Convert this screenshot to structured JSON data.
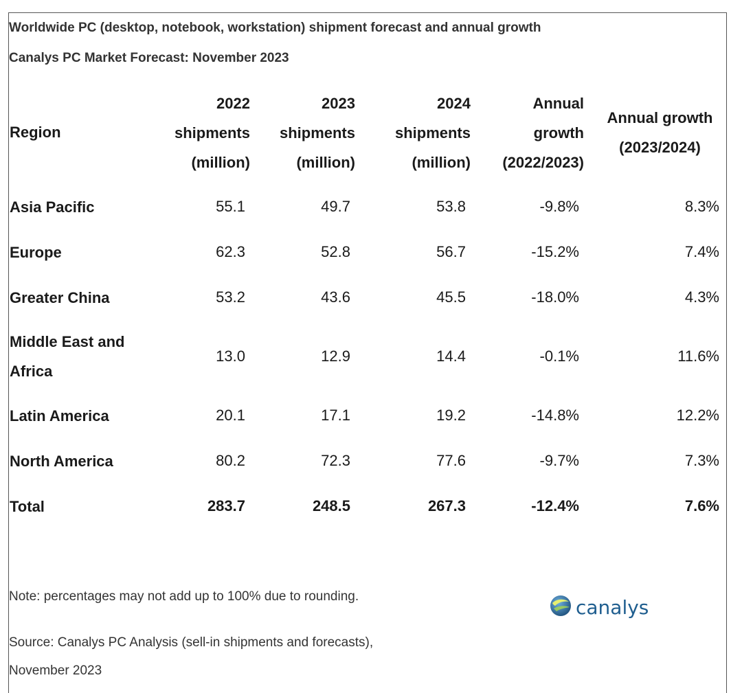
{
  "title": "Worldwide PC (desktop, notebook, workstation) shipment forecast and annual growth",
  "subtitle": "Canalys PC Market Forecast: November 2023",
  "chart_data": {
    "type": "table",
    "columns": [
      {
        "lines": [
          "Region"
        ]
      },
      {
        "lines": [
          "2022",
          "shipments",
          "(million)"
        ]
      },
      {
        "lines": [
          "2023",
          "shipments",
          "(million)"
        ]
      },
      {
        "lines": [
          "2024",
          "shipments",
          "(million)"
        ]
      },
      {
        "lines": [
          "Annual",
          "growth",
          "(2022/2023)"
        ]
      },
      {
        "lines": [
          "Annual growth",
          "(2023/2024)"
        ]
      }
    ],
    "rows": [
      {
        "region": [
          "Asia Pacific"
        ],
        "values": [
          "55.1",
          "49.7",
          "53.8",
          "-9.8%",
          "8.3%"
        ],
        "bold": false
      },
      {
        "region": [
          "Europe"
        ],
        "values": [
          "62.3",
          "52.8",
          "56.7",
          "-15.2%",
          "7.4%"
        ],
        "bold": false
      },
      {
        "region": [
          "Greater China"
        ],
        "values": [
          "53.2",
          "43.6",
          "45.5",
          "-18.0%",
          "4.3%"
        ],
        "bold": false
      },
      {
        "region": [
          "Middle East and",
          "Africa"
        ],
        "values": [
          "13.0",
          "12.9",
          "14.4",
          "-0.1%",
          "11.6%"
        ],
        "bold": false
      },
      {
        "region": [
          "Latin America"
        ],
        "values": [
          "20.1",
          "17.1",
          "19.2",
          "-14.8%",
          "12.2%"
        ],
        "bold": false
      },
      {
        "region": [
          "North America"
        ],
        "values": [
          "80.2",
          "72.3",
          "77.6",
          "-9.7%",
          "7.3%"
        ],
        "bold": false
      },
      {
        "region": [
          "Total"
        ],
        "values": [
          "283.7",
          "248.5",
          "267.3",
          "-12.4%",
          "7.6%"
        ],
        "bold": true
      }
    ]
  },
  "note": "Note: percentages may not add up to 100% due to rounding.",
  "source_line1": "Source: Canalys PC Analysis (sell-in shipments and forecasts),",
  "source_line2": "November 2023",
  "logo": {
    "text": "canalys",
    "icon": "globe-icon",
    "color": "#1f5e8f"
  }
}
